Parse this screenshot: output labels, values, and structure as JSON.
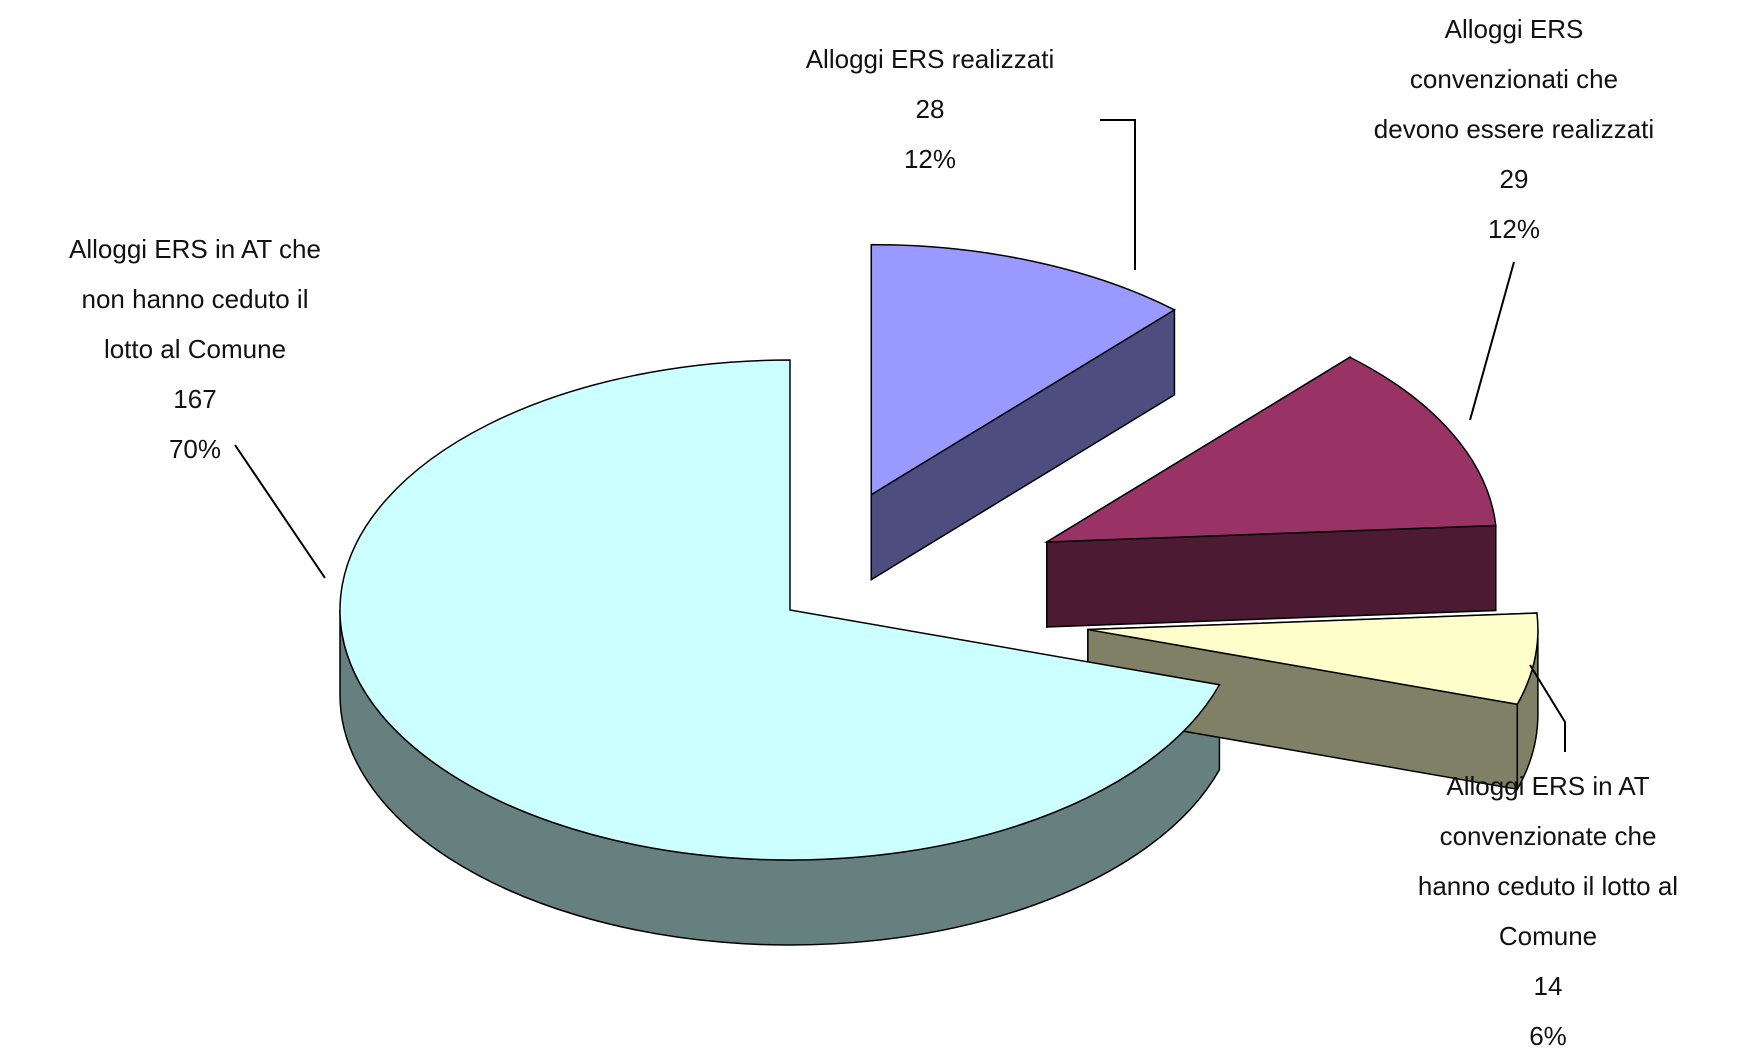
{
  "chart_data": {
    "type": "pie",
    "style": "3d-exploded",
    "legend": "none",
    "slices": [
      {
        "label_lines": [
          "Alloggi ERS realizzati"
        ],
        "value": 28,
        "percent": "12%",
        "top_color": "#9999ff",
        "side_color": "#4d4d80"
      },
      {
        "label_lines": [
          "Alloggi ERS",
          "convenzionati che",
          "devono essere realizzati"
        ],
        "value": 29,
        "percent": "12%",
        "top_color": "#993366",
        "side_color": "#4d1a33"
      },
      {
        "label_lines": [
          "Alloggi ERS in AT",
          "convenzionate che",
          "hanno ceduto il lotto al",
          "Comune"
        ],
        "value": 14,
        "percent": "6%",
        "top_color": "#ffffcc",
        "side_color": "#808066"
      },
      {
        "label_lines": [
          "Alloggi ERS in AT che",
          "non hanno ceduto il",
          "lotto al Comune"
        ],
        "value": 167,
        "percent": "70%",
        "top_color": "#ccffff",
        "side_color": "#668080"
      }
    ]
  }
}
